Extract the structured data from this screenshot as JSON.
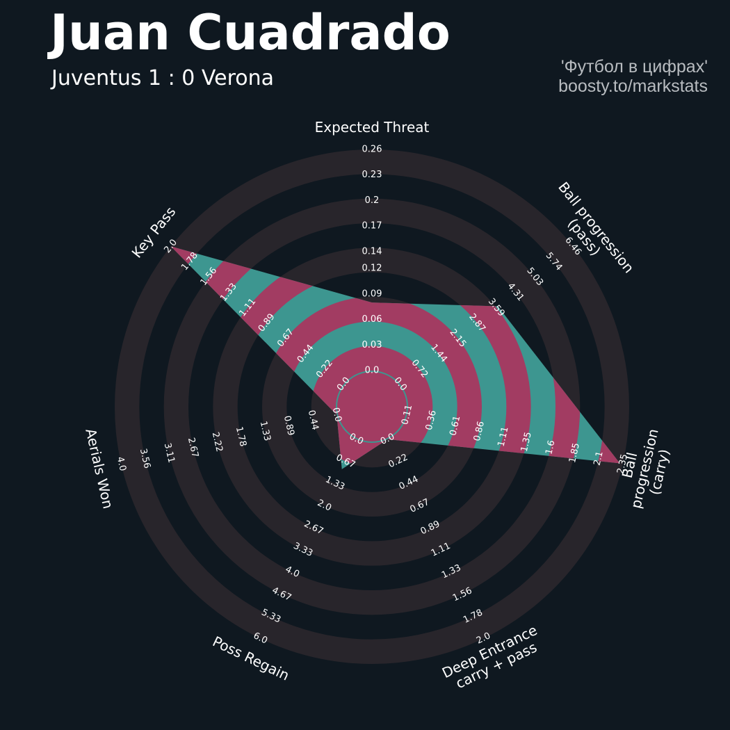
{
  "chart_data": {
    "type": "radar",
    "title": "Juan Cuadrado",
    "subtitle": "Juventus 1 : 0 Verona",
    "credits": [
      "'Футбол в цифрах'",
      "boosty.to/markstats"
    ],
    "background": "#0f1820",
    "ring_color": "#28252b",
    "params": [
      "Expected Threat",
      "Ball progression (pass)",
      "Ball progression (carry)",
      "Deep Entrance\ncarry + pass",
      "Poss Regain",
      "Aerials Won",
      "Key Pass"
    ],
    "axes": [
      {
        "lim": [
          0,
          0.26
        ],
        "ticks": [
          {
            "value": 0,
            "label": "0.0"
          },
          0.03,
          0.06,
          0.09,
          0.12,
          0.14,
          0.17,
          0.2,
          0.23,
          0.26
        ]
      },
      {
        "lim": [
          0,
          6.46
        ],
        "ticks": [
          {
            "value": 0,
            "label": "0.0"
          },
          0.72,
          1.44,
          2.15,
          2.87,
          3.59,
          4.31,
          5.03,
          5.74,
          6.46
        ]
      },
      {
        "lim": [
          0.11,
          2.35
        ],
        "ticks": [
          0.11,
          0.36,
          0.61,
          0.86,
          1.11,
          1.35,
          1.6,
          1.85,
          2.1,
          2.35
        ]
      },
      {
        "lim": [
          0,
          2
        ],
        "ticks": [
          {
            "value": 0,
            "label": "0.0"
          },
          0.22,
          0.44,
          0.67,
          0.89,
          1.11,
          1.33,
          1.56,
          1.78,
          {
            "value": 2,
            "label": "2.0"
          }
        ]
      },
      {
        "lim": [
          0,
          6
        ],
        "ticks": [
          {
            "value": 0,
            "label": "0.0"
          },
          0.67,
          1.33,
          {
            "value": 2,
            "label": "2.0"
          },
          2.67,
          3.33,
          {
            "value": 4,
            "label": "4.0"
          },
          4.67,
          5.33,
          {
            "value": 6,
            "label": "6.0"
          }
        ]
      },
      {
        "lim": [
          0,
          4
        ],
        "ticks": [
          {
            "value": 0,
            "label": "0.0"
          },
          0.44,
          0.89,
          1.33,
          1.78,
          2.22,
          2.67,
          3.11,
          3.56,
          {
            "value": 4,
            "label": "4.0"
          }
        ]
      },
      {
        "lim": [
          0,
          2
        ],
        "ticks": [
          {
            "value": 0,
            "label": "0.0"
          },
          0.22,
          0.44,
          0.67,
          0.89,
          1.11,
          1.33,
          1.56,
          1.78,
          {
            "value": 2,
            "label": "2.0"
          }
        ]
      }
    ],
    "series": [
      {
        "color": "#3d9690",
        "highlight_color": "#a23c62",
        "values": [
          0.08,
          3.65,
          2.32,
          0,
          0.9,
          0,
          2.0
        ]
      }
    ]
  }
}
